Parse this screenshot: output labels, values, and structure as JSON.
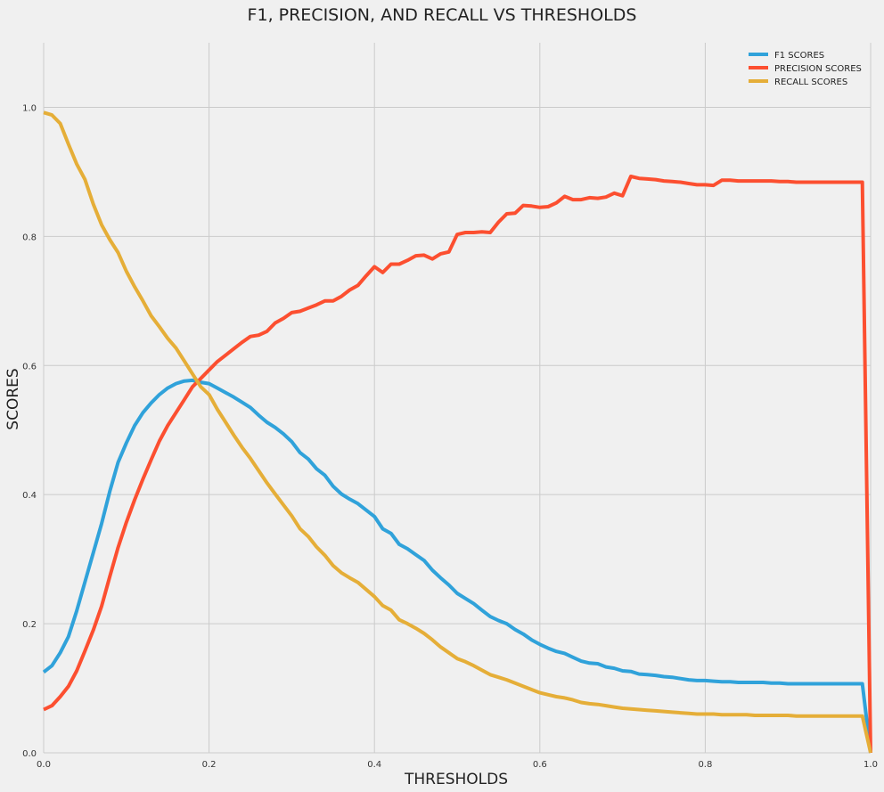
{
  "chart_data": {
    "type": "line",
    "title": "F1, PRECISION, AND RECALL VS THRESHOLDS",
    "xlabel": "THRESHOLDS",
    "ylabel": "SCORES",
    "xlim": [
      0,
      1
    ],
    "ylim": [
      0,
      1.1
    ],
    "x_ticks": [
      0.0,
      0.2,
      0.4,
      0.6,
      0.8,
      1.0
    ],
    "x_tick_labels": [
      "0.0",
      "0.2",
      "0.4",
      "0.6",
      "0.8",
      "1.0"
    ],
    "y_ticks": [
      0.0,
      0.2,
      0.4,
      0.6,
      0.8,
      1.0
    ],
    "y_tick_labels": [
      "0.0",
      "0.2",
      "0.4",
      "0.6",
      "0.8",
      "1.0"
    ],
    "grid": true,
    "legend_position": "top-right",
    "series": [
      {
        "name": "F1 SCORES",
        "color": "#30a2da",
        "points": [
          [
            0.0,
            0.125
          ],
          [
            0.01,
            0.135
          ],
          [
            0.02,
            0.155
          ],
          [
            0.03,
            0.18
          ],
          [
            0.04,
            0.22
          ],
          [
            0.05,
            0.265
          ],
          [
            0.06,
            0.31
          ],
          [
            0.07,
            0.355
          ],
          [
            0.08,
            0.405
          ],
          [
            0.09,
            0.45
          ],
          [
            0.1,
            0.48
          ],
          [
            0.11,
            0.507
          ],
          [
            0.12,
            0.527
          ],
          [
            0.13,
            0.542
          ],
          [
            0.14,
            0.555
          ],
          [
            0.15,
            0.565
          ],
          [
            0.16,
            0.572
          ],
          [
            0.17,
            0.576
          ],
          [
            0.18,
            0.577
          ],
          [
            0.19,
            0.574
          ],
          [
            0.2,
            0.572
          ],
          [
            0.21,
            0.565
          ],
          [
            0.22,
            0.558
          ],
          [
            0.23,
            0.551
          ],
          [
            0.24,
            0.543
          ],
          [
            0.25,
            0.535
          ],
          [
            0.26,
            0.523
          ],
          [
            0.27,
            0.512
          ],
          [
            0.28,
            0.504
          ],
          [
            0.29,
            0.494
          ],
          [
            0.3,
            0.482
          ],
          [
            0.31,
            0.465
          ],
          [
            0.32,
            0.455
          ],
          [
            0.33,
            0.44
          ],
          [
            0.34,
            0.43
          ],
          [
            0.35,
            0.413
          ],
          [
            0.36,
            0.401
          ],
          [
            0.37,
            0.393
          ],
          [
            0.38,
            0.386
          ],
          [
            0.39,
            0.376
          ],
          [
            0.4,
            0.366
          ],
          [
            0.41,
            0.347
          ],
          [
            0.42,
            0.34
          ],
          [
            0.43,
            0.323
          ],
          [
            0.44,
            0.316
          ],
          [
            0.45,
            0.307
          ],
          [
            0.46,
            0.298
          ],
          [
            0.47,
            0.283
          ],
          [
            0.48,
            0.271
          ],
          [
            0.49,
            0.26
          ],
          [
            0.5,
            0.247
          ],
          [
            0.51,
            0.239
          ],
          [
            0.52,
            0.231
          ],
          [
            0.53,
            0.221
          ],
          [
            0.54,
            0.211
          ],
          [
            0.55,
            0.205
          ],
          [
            0.56,
            0.2
          ],
          [
            0.57,
            0.191
          ],
          [
            0.58,
            0.184
          ],
          [
            0.59,
            0.175
          ],
          [
            0.6,
            0.168
          ],
          [
            0.61,
            0.162
          ],
          [
            0.62,
            0.157
          ],
          [
            0.63,
            0.154
          ],
          [
            0.64,
            0.148
          ],
          [
            0.65,
            0.142
          ],
          [
            0.66,
            0.139
          ],
          [
            0.67,
            0.138
          ],
          [
            0.68,
            0.133
          ],
          [
            0.69,
            0.131
          ],
          [
            0.7,
            0.127
          ],
          [
            0.71,
            0.126
          ],
          [
            0.72,
            0.122
          ],
          [
            0.73,
            0.121
          ],
          [
            0.74,
            0.12
          ],
          [
            0.75,
            0.118
          ],
          [
            0.76,
            0.117
          ],
          [
            0.77,
            0.115
          ],
          [
            0.78,
            0.113
          ],
          [
            0.79,
            0.112
          ],
          [
            0.8,
            0.112
          ],
          [
            0.81,
            0.111
          ],
          [
            0.82,
            0.11
          ],
          [
            0.83,
            0.11
          ],
          [
            0.84,
            0.109
          ],
          [
            0.85,
            0.109
          ],
          [
            0.86,
            0.109
          ],
          [
            0.87,
            0.109
          ],
          [
            0.88,
            0.108
          ],
          [
            0.89,
            0.108
          ],
          [
            0.9,
            0.107
          ],
          [
            0.91,
            0.107
          ],
          [
            0.92,
            0.107
          ],
          [
            0.93,
            0.107
          ],
          [
            0.94,
            0.107
          ],
          [
            0.95,
            0.107
          ],
          [
            0.96,
            0.107
          ],
          [
            0.97,
            0.107
          ],
          [
            0.99,
            0.107
          ],
          [
            1.0,
            0.0
          ]
        ]
      },
      {
        "name": "PRECISION SCORES",
        "color": "#fc4f30",
        "points": [
          [
            0.0,
            0.067
          ],
          [
            0.01,
            0.073
          ],
          [
            0.02,
            0.087
          ],
          [
            0.03,
            0.103
          ],
          [
            0.04,
            0.127
          ],
          [
            0.05,
            0.158
          ],
          [
            0.06,
            0.19
          ],
          [
            0.07,
            0.227
          ],
          [
            0.08,
            0.273
          ],
          [
            0.09,
            0.318
          ],
          [
            0.1,
            0.357
          ],
          [
            0.11,
            0.392
          ],
          [
            0.12,
            0.424
          ],
          [
            0.13,
            0.454
          ],
          [
            0.14,
            0.483
          ],
          [
            0.15,
            0.507
          ],
          [
            0.16,
            0.527
          ],
          [
            0.17,
            0.547
          ],
          [
            0.18,
            0.567
          ],
          [
            0.19,
            0.58
          ],
          [
            0.2,
            0.593
          ],
          [
            0.21,
            0.606
          ],
          [
            0.22,
            0.616
          ],
          [
            0.23,
            0.626
          ],
          [
            0.24,
            0.636
          ],
          [
            0.25,
            0.645
          ],
          [
            0.26,
            0.647
          ],
          [
            0.27,
            0.653
          ],
          [
            0.28,
            0.666
          ],
          [
            0.29,
            0.673
          ],
          [
            0.3,
            0.682
          ],
          [
            0.31,
            0.684
          ],
          [
            0.32,
            0.689
          ],
          [
            0.33,
            0.694
          ],
          [
            0.34,
            0.7
          ],
          [
            0.35,
            0.7
          ],
          [
            0.36,
            0.707
          ],
          [
            0.37,
            0.717
          ],
          [
            0.38,
            0.724
          ],
          [
            0.39,
            0.739
          ],
          [
            0.4,
            0.753
          ],
          [
            0.41,
            0.744
          ],
          [
            0.42,
            0.757
          ],
          [
            0.43,
            0.757
          ],
          [
            0.44,
            0.763
          ],
          [
            0.45,
            0.77
          ],
          [
            0.46,
            0.771
          ],
          [
            0.47,
            0.765
          ],
          [
            0.48,
            0.773
          ],
          [
            0.49,
            0.776
          ],
          [
            0.5,
            0.803
          ],
          [
            0.51,
            0.806
          ],
          [
            0.52,
            0.806
          ],
          [
            0.53,
            0.807
          ],
          [
            0.54,
            0.806
          ],
          [
            0.55,
            0.822
          ],
          [
            0.56,
            0.835
          ],
          [
            0.57,
            0.836
          ],
          [
            0.58,
            0.848
          ],
          [
            0.59,
            0.847
          ],
          [
            0.6,
            0.845
          ],
          [
            0.61,
            0.846
          ],
          [
            0.62,
            0.852
          ],
          [
            0.63,
            0.862
          ],
          [
            0.64,
            0.857
          ],
          [
            0.65,
            0.857
          ],
          [
            0.66,
            0.86
          ],
          [
            0.67,
            0.859
          ],
          [
            0.68,
            0.861
          ],
          [
            0.69,
            0.867
          ],
          [
            0.7,
            0.863
          ],
          [
            0.71,
            0.893
          ],
          [
            0.72,
            0.89
          ],
          [
            0.73,
            0.889
          ],
          [
            0.74,
            0.888
          ],
          [
            0.75,
            0.886
          ],
          [
            0.76,
            0.885
          ],
          [
            0.77,
            0.884
          ],
          [
            0.78,
            0.882
          ],
          [
            0.79,
            0.88
          ],
          [
            0.8,
            0.88
          ],
          [
            0.81,
            0.879
          ],
          [
            0.82,
            0.887
          ],
          [
            0.83,
            0.887
          ],
          [
            0.84,
            0.886
          ],
          [
            0.85,
            0.886
          ],
          [
            0.86,
            0.886
          ],
          [
            0.87,
            0.886
          ],
          [
            0.88,
            0.886
          ],
          [
            0.89,
            0.885
          ],
          [
            0.9,
            0.885
          ],
          [
            0.91,
            0.884
          ],
          [
            0.92,
            0.884
          ],
          [
            0.93,
            0.884
          ],
          [
            0.94,
            0.884
          ],
          [
            0.95,
            0.884
          ],
          [
            0.96,
            0.884
          ],
          [
            0.97,
            0.884
          ],
          [
            0.99,
            0.884
          ],
          [
            1.0,
            0.0
          ]
        ]
      },
      {
        "name": "RECALL SCORES",
        "color": "#e5ae38",
        "points": [
          [
            0.0,
            0.992
          ],
          [
            0.01,
            0.988
          ],
          [
            0.02,
            0.975
          ],
          [
            0.03,
            0.943
          ],
          [
            0.04,
            0.912
          ],
          [
            0.05,
            0.888
          ],
          [
            0.06,
            0.85
          ],
          [
            0.07,
            0.818
          ],
          [
            0.08,
            0.795
          ],
          [
            0.09,
            0.775
          ],
          [
            0.1,
            0.746
          ],
          [
            0.11,
            0.722
          ],
          [
            0.12,
            0.7
          ],
          [
            0.13,
            0.677
          ],
          [
            0.14,
            0.66
          ],
          [
            0.15,
            0.642
          ],
          [
            0.16,
            0.627
          ],
          [
            0.17,
            0.607
          ],
          [
            0.18,
            0.587
          ],
          [
            0.19,
            0.567
          ],
          [
            0.2,
            0.555
          ],
          [
            0.21,
            0.532
          ],
          [
            0.22,
            0.512
          ],
          [
            0.23,
            0.492
          ],
          [
            0.24,
            0.473
          ],
          [
            0.25,
            0.456
          ],
          [
            0.26,
            0.437
          ],
          [
            0.27,
            0.418
          ],
          [
            0.28,
            0.401
          ],
          [
            0.29,
            0.384
          ],
          [
            0.3,
            0.367
          ],
          [
            0.31,
            0.347
          ],
          [
            0.32,
            0.335
          ],
          [
            0.33,
            0.319
          ],
          [
            0.34,
            0.306
          ],
          [
            0.35,
            0.29
          ],
          [
            0.36,
            0.279
          ],
          [
            0.37,
            0.271
          ],
          [
            0.38,
            0.264
          ],
          [
            0.39,
            0.253
          ],
          [
            0.4,
            0.242
          ],
          [
            0.41,
            0.228
          ],
          [
            0.42,
            0.221
          ],
          [
            0.43,
            0.206
          ],
          [
            0.44,
            0.2
          ],
          [
            0.45,
            0.193
          ],
          [
            0.46,
            0.185
          ],
          [
            0.47,
            0.175
          ],
          [
            0.48,
            0.164
          ],
          [
            0.49,
            0.155
          ],
          [
            0.5,
            0.146
          ],
          [
            0.51,
            0.141
          ],
          [
            0.52,
            0.135
          ],
          [
            0.53,
            0.128
          ],
          [
            0.54,
            0.121
          ],
          [
            0.55,
            0.117
          ],
          [
            0.56,
            0.113
          ],
          [
            0.57,
            0.108
          ],
          [
            0.58,
            0.103
          ],
          [
            0.59,
            0.098
          ],
          [
            0.6,
            0.093
          ],
          [
            0.61,
            0.09
          ],
          [
            0.62,
            0.087
          ],
          [
            0.63,
            0.085
          ],
          [
            0.64,
            0.082
          ],
          [
            0.65,
            0.078
          ],
          [
            0.66,
            0.076
          ],
          [
            0.67,
            0.075
          ],
          [
            0.68,
            0.073
          ],
          [
            0.69,
            0.071
          ],
          [
            0.7,
            0.069
          ],
          [
            0.71,
            0.068
          ],
          [
            0.72,
            0.067
          ],
          [
            0.73,
            0.066
          ],
          [
            0.74,
            0.065
          ],
          [
            0.75,
            0.064
          ],
          [
            0.76,
            0.063
          ],
          [
            0.77,
            0.062
          ],
          [
            0.78,
            0.061
          ],
          [
            0.79,
            0.06
          ],
          [
            0.8,
            0.06
          ],
          [
            0.81,
            0.06
          ],
          [
            0.82,
            0.059
          ],
          [
            0.83,
            0.059
          ],
          [
            0.84,
            0.059
          ],
          [
            0.85,
            0.059
          ],
          [
            0.86,
            0.058
          ],
          [
            0.87,
            0.058
          ],
          [
            0.88,
            0.058
          ],
          [
            0.89,
            0.058
          ],
          [
            0.9,
            0.058
          ],
          [
            0.91,
            0.057
          ],
          [
            0.92,
            0.057
          ],
          [
            0.93,
            0.057
          ],
          [
            0.94,
            0.057
          ],
          [
            0.95,
            0.057
          ],
          [
            0.96,
            0.057
          ],
          [
            0.97,
            0.057
          ],
          [
            0.99,
            0.057
          ],
          [
            1.0,
            0.0
          ]
        ]
      }
    ]
  }
}
